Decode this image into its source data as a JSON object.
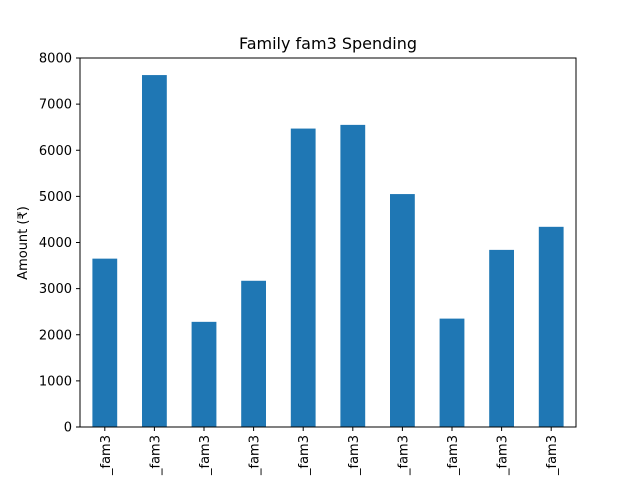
{
  "chart_data": {
    "type": "bar",
    "title": "Family fam3 Spending",
    "xlabel": "",
    "ylabel": "Amount (₹)",
    "categories": [
      "_fam3",
      "_fam3",
      "_fam3",
      "_fam3",
      "_fam3",
      "_fam3",
      "_fam3",
      "_fam3",
      "_fam3",
      "_fam3"
    ],
    "values": [
      3650,
      7630,
      2280,
      3170,
      6470,
      6550,
      5050,
      2350,
      3840,
      4340
    ],
    "ylim": [
      0,
      8000
    ],
    "yticks": [
      0,
      1000,
      2000,
      3000,
      4000,
      5000,
      6000,
      7000,
      8000
    ],
    "grid": false,
    "bar_color": "#1f77b4"
  }
}
